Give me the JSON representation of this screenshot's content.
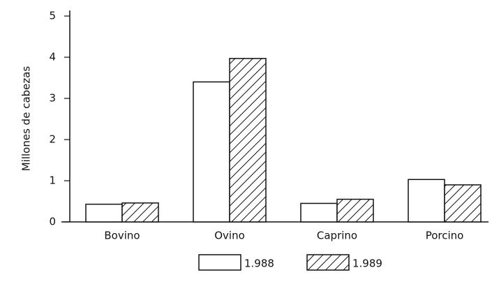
{
  "chart_data": {
    "type": "bar",
    "ylabel": "Millones de cabezas",
    "categories": [
      "Bovino",
      "Ovino",
      "Caprino",
      "Porcino"
    ],
    "series": [
      {
        "name": "1.988",
        "color": "#ffffff",
        "values": [
          0.43,
          3.4,
          0.45,
          1.03
        ]
      },
      {
        "name": "1.989",
        "color": "#ffffff",
        "pattern": "hatch",
        "values": [
          0.46,
          3.97,
          0.55,
          0.9
        ]
      }
    ],
    "ylim": [
      0,
      5
    ],
    "yticks": [
      0,
      1,
      2,
      3,
      4,
      5
    ],
    "grid": false
  }
}
